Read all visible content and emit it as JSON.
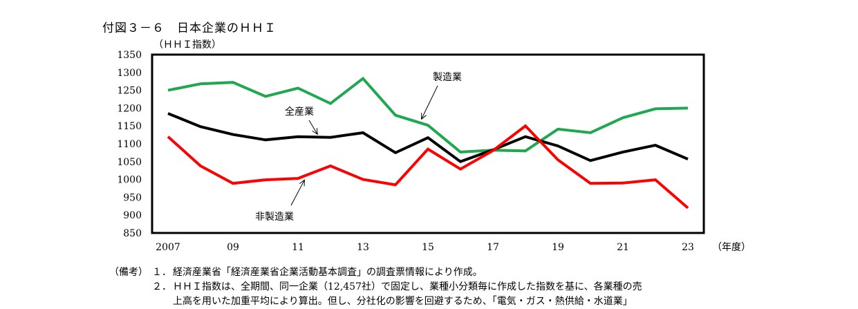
{
  "title": "付図３－６　日本企業のＨＨＩ",
  "chart_data": {
    "type": "line",
    "ylabel": "（ＨＨＩ指数）",
    "xlabel": "（年度）",
    "ylim": [
      850,
      1350
    ],
    "yticks": [
      850,
      900,
      950,
      1000,
      1050,
      1100,
      1150,
      1200,
      1250,
      1300,
      1350
    ],
    "xlim": [
      2007,
      2023
    ],
    "xticks": [
      {
        "x": 2007,
        "label": "2007"
      },
      {
        "x": 2009,
        "label": "09"
      },
      {
        "x": 2011,
        "label": "11"
      },
      {
        "x": 2013,
        "label": "13"
      },
      {
        "x": 2015,
        "label": "15"
      },
      {
        "x": 2017,
        "label": "17"
      },
      {
        "x": 2019,
        "label": "19"
      },
      {
        "x": 2021,
        "label": "21"
      },
      {
        "x": 2023,
        "label": "23"
      }
    ],
    "x": [
      2007,
      2008,
      2009,
      2010,
      2011,
      2012,
      2013,
      2014,
      2015,
      2016,
      2017,
      2018,
      2019,
      2020,
      2021,
      2022,
      2023
    ],
    "series": [
      {
        "name": "製造業",
        "color": "#1fa84f",
        "values": [
          1250,
          1268,
          1272,
          1233,
          1256,
          1213,
          1283,
          1180,
          1152,
          1077,
          1082,
          1080,
          1141,
          1131,
          1173,
          1198,
          1200
        ]
      },
      {
        "name": "全産業",
        "color": "#000000",
        "values": [
          1185,
          1148,
          1126,
          1111,
          1120,
          1118,
          1131,
          1075,
          1117,
          1050,
          1083,
          1120,
          1094,
          1053,
          1077,
          1096,
          1057
        ]
      },
      {
        "name": "非製造業",
        "color": "#ff0000",
        "values": [
          1120,
          1038,
          989,
          999,
          1003,
          1038,
          1000,
          985,
          1085,
          1029,
          1081,
          1150,
          1055,
          989,
          990,
          999,
          920
        ]
      }
    ],
    "annotations": [
      {
        "text": "製造業",
        "series": "製造業",
        "x": 2014.8
      },
      {
        "text": "全産業",
        "series": "全産業",
        "x": 2011.6
      },
      {
        "text": "非製造業",
        "series": "非製造業",
        "x": 2011.2
      }
    ],
    "grid": false,
    "legend": "none"
  },
  "notes": {
    "head": "（備考）",
    "items": [
      {
        "num": "１．",
        "text": "経済産業省「経済産業省企業活動基本調査」の調査票情報により作成。"
      },
      {
        "num": "２．",
        "text": "ＨＨＩ指数は、全期間、同一企業（12,457社）で固定し、業種小分類毎に作成した指数を基に、各業種の売"
      },
      {
        "num": "",
        "text": "上高を用いた加重平均により算出。但し、分社化の影響を回避するため、「電気・ガス・熱供給・水道業」"
      }
    ]
  }
}
